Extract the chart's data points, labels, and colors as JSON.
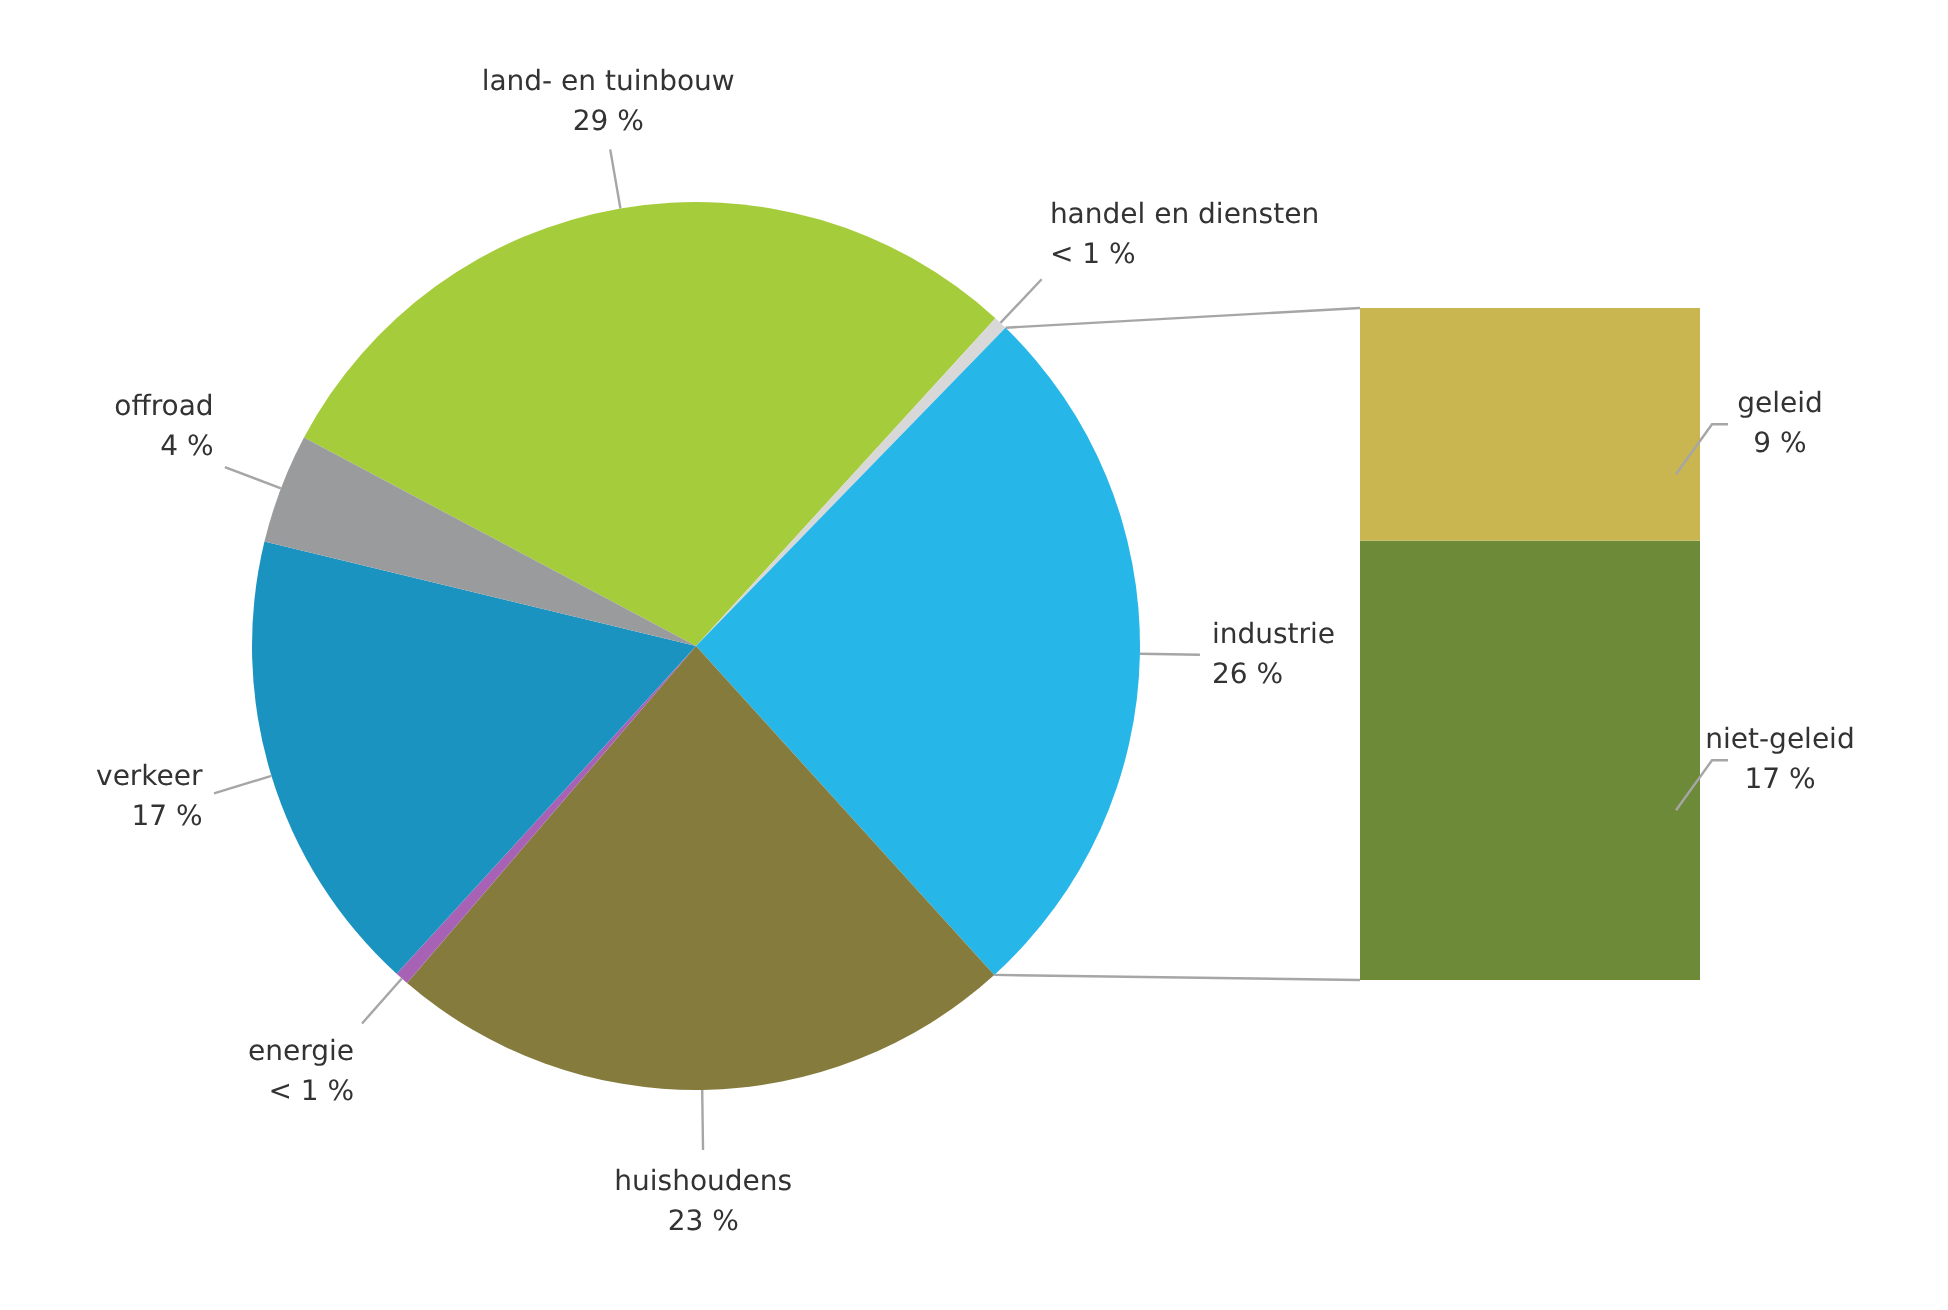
{
  "chart_data": [
    {
      "type": "pie",
      "categories": [
        "land- en tuinbouw",
        "handel en diensten",
        "industrie",
        "huishoudens",
        "energie",
        "verkeer",
        "offroad"
      ],
      "values": [
        29,
        0.5,
        26,
        23,
        0.5,
        17,
        4
      ],
      "colors": [
        "#a5cc3a",
        "#d8d8d8",
        "#27b6e8",
        "#857b3d",
        "#a862b5",
        "#1a93c0",
        "#9a9b9c"
      ],
      "value_labels": [
        "29 %",
        "< 1 %",
        "26 %",
        "23 %",
        "< 1 %",
        "17 %",
        "4 %"
      ]
    },
    {
      "type": "bar",
      "stacked": true,
      "categories": [
        null
      ],
      "series": [
        {
          "name": "niet-geleid",
          "color": "#6c8a38",
          "values": [
            17
          ],
          "value_labels": [
            "17 %"
          ]
        },
        {
          "name": "geleid",
          "color": "#c9b650",
          "values": [
            9
          ],
          "value_labels": [
            "9 %"
          ]
        }
      ]
    }
  ]
}
